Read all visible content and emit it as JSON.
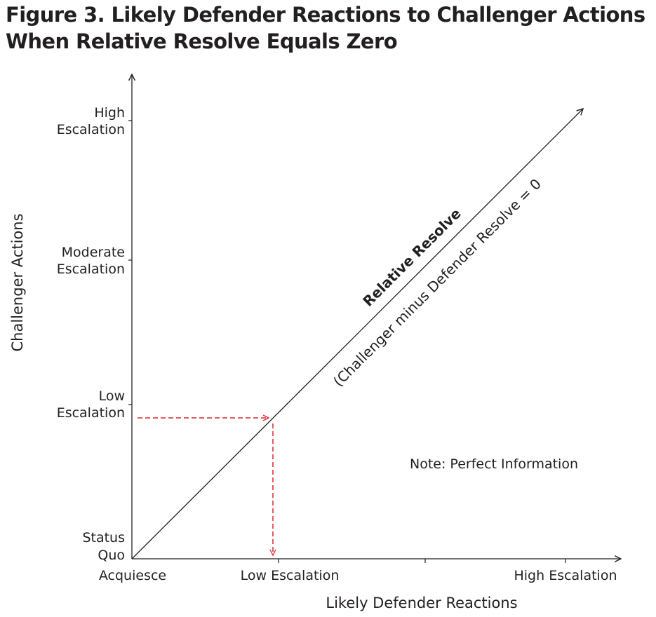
{
  "title": {
    "line1": "Figure 3. Likely Defender Reactions to Challenger Actions",
    "line2": "When Relative Resolve Equals Zero"
  },
  "y_axis": {
    "title": "Challenger Actions",
    "ticks": [
      {
        "line1": "High",
        "line2": "Escalation"
      },
      {
        "line1": "Moderate",
        "line2": "Escalation"
      },
      {
        "line1": "Low",
        "line2": "Escalation"
      },
      {
        "line1": "Status",
        "line2": "Quo"
      }
    ]
  },
  "x_axis": {
    "title": "Likely Defender Reactions",
    "ticks": [
      "Acquiesce",
      "Low Escalation",
      "High Escalation"
    ]
  },
  "diagonal": {
    "label": "Relative Resolve",
    "sublabel": "(Challenger minus Defender Resolve = 0"
  },
  "note": "Note: Perfect Information",
  "colors": {
    "text": "#231f20",
    "axis": "#231f20",
    "arrow_dashed": "#e0242b"
  }
}
